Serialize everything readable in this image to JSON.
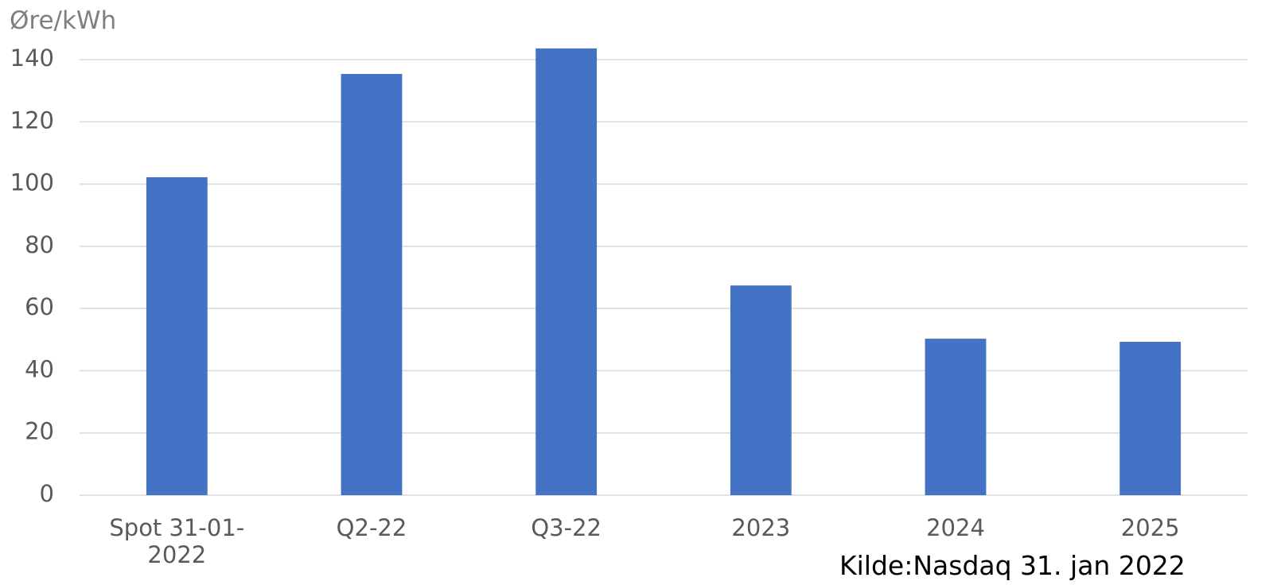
{
  "chart_data": {
    "type": "bar",
    "y_axis_label": "Øre/kWh",
    "categories": [
      "Spot 31-01-2022",
      "Q2-22",
      "Q3-22",
      "2023",
      "2024",
      "2025"
    ],
    "values": [
      102.2,
      135.4,
      143.6,
      67.4,
      50.3,
      49.3
    ],
    "color": "#4472c4",
    "ylim": [
      0,
      150
    ],
    "yticks": [
      0,
      20,
      40,
      60,
      80,
      100,
      120,
      140
    ],
    "grid": true,
    "annotation": "Kilde:Nasdaq 31. jan 2022"
  }
}
